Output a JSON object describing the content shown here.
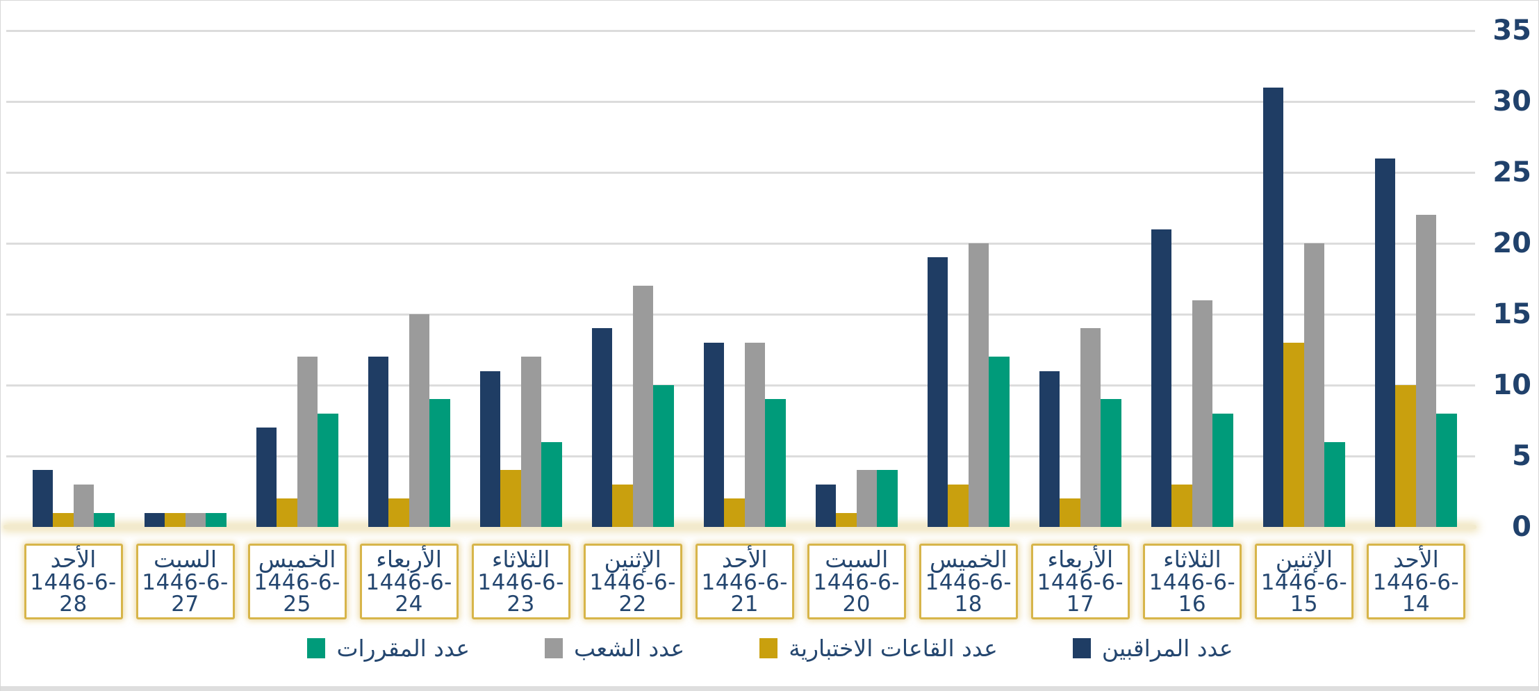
{
  "colors": {
    "navy": "#1f3d64",
    "gold": "#c9a00e",
    "gray": "#9b9b9b",
    "green": "#009b7a",
    "text": "#24466f",
    "gridline": "#dcdcdc",
    "baseline": "#f2eacd",
    "box_border": "#d7b54a",
    "bottom_strip": "#dedede"
  },
  "chart_data": {
    "type": "bar",
    "direction": "rtl",
    "title": "",
    "xlabel": "",
    "ylabel": "",
    "ylim": [
      0,
      35
    ],
    "y_ticks": [
      0,
      5,
      10,
      15,
      20,
      25,
      30,
      35
    ],
    "grid": true,
    "y_axis_side": "right",
    "legend_position": "bottom",
    "categories": [
      {
        "day": "الأحد",
        "date": "1446-6-28"
      },
      {
        "day": "السبت",
        "date": "1446-6-27"
      },
      {
        "day": "الخميس",
        "date": "1446-6-25"
      },
      {
        "day": "الأربعاء",
        "date": "1446-6-24"
      },
      {
        "day": "الثلاثاء",
        "date": "1446-6-23"
      },
      {
        "day": "الإثنين",
        "date": "1446-6-22"
      },
      {
        "day": "الأحد",
        "date": "1446-6-21"
      },
      {
        "day": "السبت",
        "date": "1446-6-20"
      },
      {
        "day": "الخميس",
        "date": "1446-6-18"
      },
      {
        "day": "الأربعاء",
        "date": "1446-6-17"
      },
      {
        "day": "الثلاثاء",
        "date": "1446-6-16"
      },
      {
        "day": "الإثنين",
        "date": "1446-6-15"
      },
      {
        "day": "الأحد",
        "date": "1446-6-14"
      }
    ],
    "series": [
      {
        "name": "عدد المراقبين",
        "color_key": "navy",
        "values": [
          4,
          1,
          7,
          12,
          11,
          14,
          13,
          3,
          19,
          11,
          21,
          31,
          26
        ]
      },
      {
        "name": "عدد القاعات الاختبارية",
        "color_key": "gold",
        "values": [
          1,
          1,
          2,
          2,
          4,
          3,
          2,
          1,
          3,
          2,
          3,
          13,
          10
        ]
      },
      {
        "name": "عدد الشعب",
        "color_key": "gray",
        "values": [
          3,
          1,
          12,
          15,
          12,
          17,
          13,
          4,
          20,
          14,
          16,
          20,
          22
        ]
      },
      {
        "name": "عدد المقررات",
        "color_key": "green",
        "values": [
          1,
          1,
          8,
          9,
          6,
          10,
          9,
          4,
          12,
          9,
          8,
          6,
          8
        ]
      }
    ],
    "legend": [
      {
        "label": "عدد المقررات",
        "color_key": "green"
      },
      {
        "label": "عدد الشعب",
        "color_key": "gray"
      },
      {
        "label": "عدد القاعات الاختبارية",
        "color_key": "gold"
      },
      {
        "label": "عدد المراقبين",
        "color_key": "navy"
      }
    ]
  }
}
